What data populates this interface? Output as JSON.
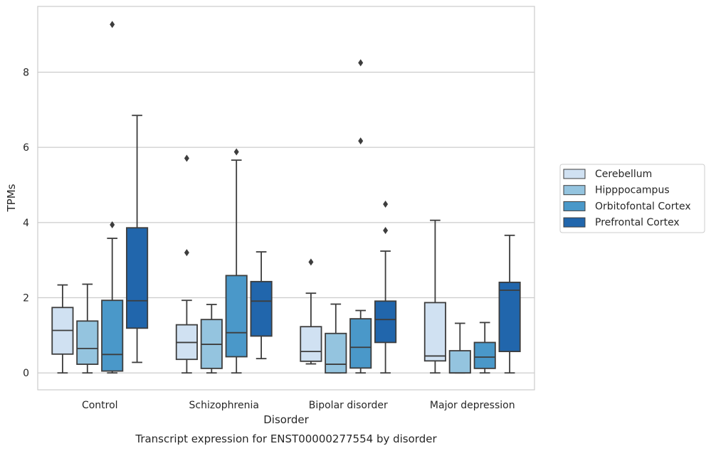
{
  "chart_data": {
    "type": "boxplot",
    "caption": "Transcript expression for ENST00000277554 by disorder",
    "xlabel": "Disorder",
    "ylabel": "TPMs",
    "ylim": [
      -0.45,
      9.75
    ],
    "yticks": [
      0,
      2,
      4,
      6,
      8
    ],
    "grid": "horizontal",
    "legend_position": "right",
    "categories": [
      "Control",
      "Schizophrenia",
      "Bipolar disorder",
      "Major depression"
    ],
    "series": [
      {
        "name": "Cerebellum",
        "color": "#d0e1f2",
        "boxes": [
          {
            "whislo": 0,
            "q1": 0.5,
            "med": 1.13,
            "q3": 1.74,
            "whishi": 2.34,
            "fliers": []
          },
          {
            "whislo": 0,
            "q1": 0.36,
            "med": 0.81,
            "q3": 1.28,
            "whishi": 1.93,
            "fliers": [
              3.2,
              5.71
            ]
          },
          {
            "whislo": 0.24,
            "q1": 0.31,
            "med": 0.57,
            "q3": 1.23,
            "whishi": 2.12,
            "fliers": [
              2.95
            ]
          },
          {
            "whislo": 0,
            "q1": 0.32,
            "med": 0.45,
            "q3": 1.87,
            "whishi": 4.06,
            "fliers": []
          }
        ]
      },
      {
        "name": "Hipppocampus",
        "color": "#94c4df",
        "boxes": [
          {
            "whislo": 0,
            "q1": 0.23,
            "med": 0.65,
            "q3": 1.38,
            "whishi": 2.36,
            "fliers": []
          },
          {
            "whislo": 0,
            "q1": 0.12,
            "med": 0.76,
            "q3": 1.42,
            "whishi": 1.82,
            "fliers": []
          },
          {
            "whislo": 0,
            "q1": 0,
            "med": 0.23,
            "q3": 1.05,
            "whishi": 1.83,
            "fliers": []
          },
          {
            "whislo": 0,
            "q1": 0,
            "med": 0,
            "q3": 0.59,
            "whishi": 1.32,
            "fliers": []
          }
        ]
      },
      {
        "name": "Orbitofontal Cortex",
        "color": "#4a98c9",
        "boxes": [
          {
            "whislo": 0,
            "q1": 0.05,
            "med": 0.49,
            "q3": 1.93,
            "whishi": 3.58,
            "fliers": [
              3.94,
              9.27
            ]
          },
          {
            "whislo": 0,
            "q1": 0.43,
            "med": 1.07,
            "q3": 2.59,
            "whishi": 5.66,
            "fliers": [
              5.88
            ]
          },
          {
            "whislo": 0,
            "q1": 0.13,
            "med": 0.68,
            "q3": 1.44,
            "whishi": 1.66,
            "fliers": [
              8.25,
              6.17
            ]
          },
          {
            "whislo": 0,
            "q1": 0.12,
            "med": 0.42,
            "q3": 0.81,
            "whishi": 1.34,
            "fliers": []
          }
        ]
      },
      {
        "name": "Prefrontal Cortex",
        "color": "#2166ac",
        "boxes": [
          {
            "whislo": 0.28,
            "q1": 1.19,
            "med": 1.92,
            "q3": 3.86,
            "whishi": 6.85,
            "fliers": []
          },
          {
            "whislo": 0.38,
            "q1": 0.98,
            "med": 1.91,
            "q3": 2.43,
            "whishi": 3.22,
            "fliers": []
          },
          {
            "whislo": 0,
            "q1": 0.81,
            "med": 1.42,
            "q3": 1.91,
            "whishi": 3.24,
            "fliers": [
              3.79,
              4.49
            ]
          },
          {
            "whislo": 0,
            "q1": 0.57,
            "med": 2.2,
            "q3": 2.41,
            "whishi": 3.66,
            "fliers": []
          }
        ]
      }
    ]
  }
}
